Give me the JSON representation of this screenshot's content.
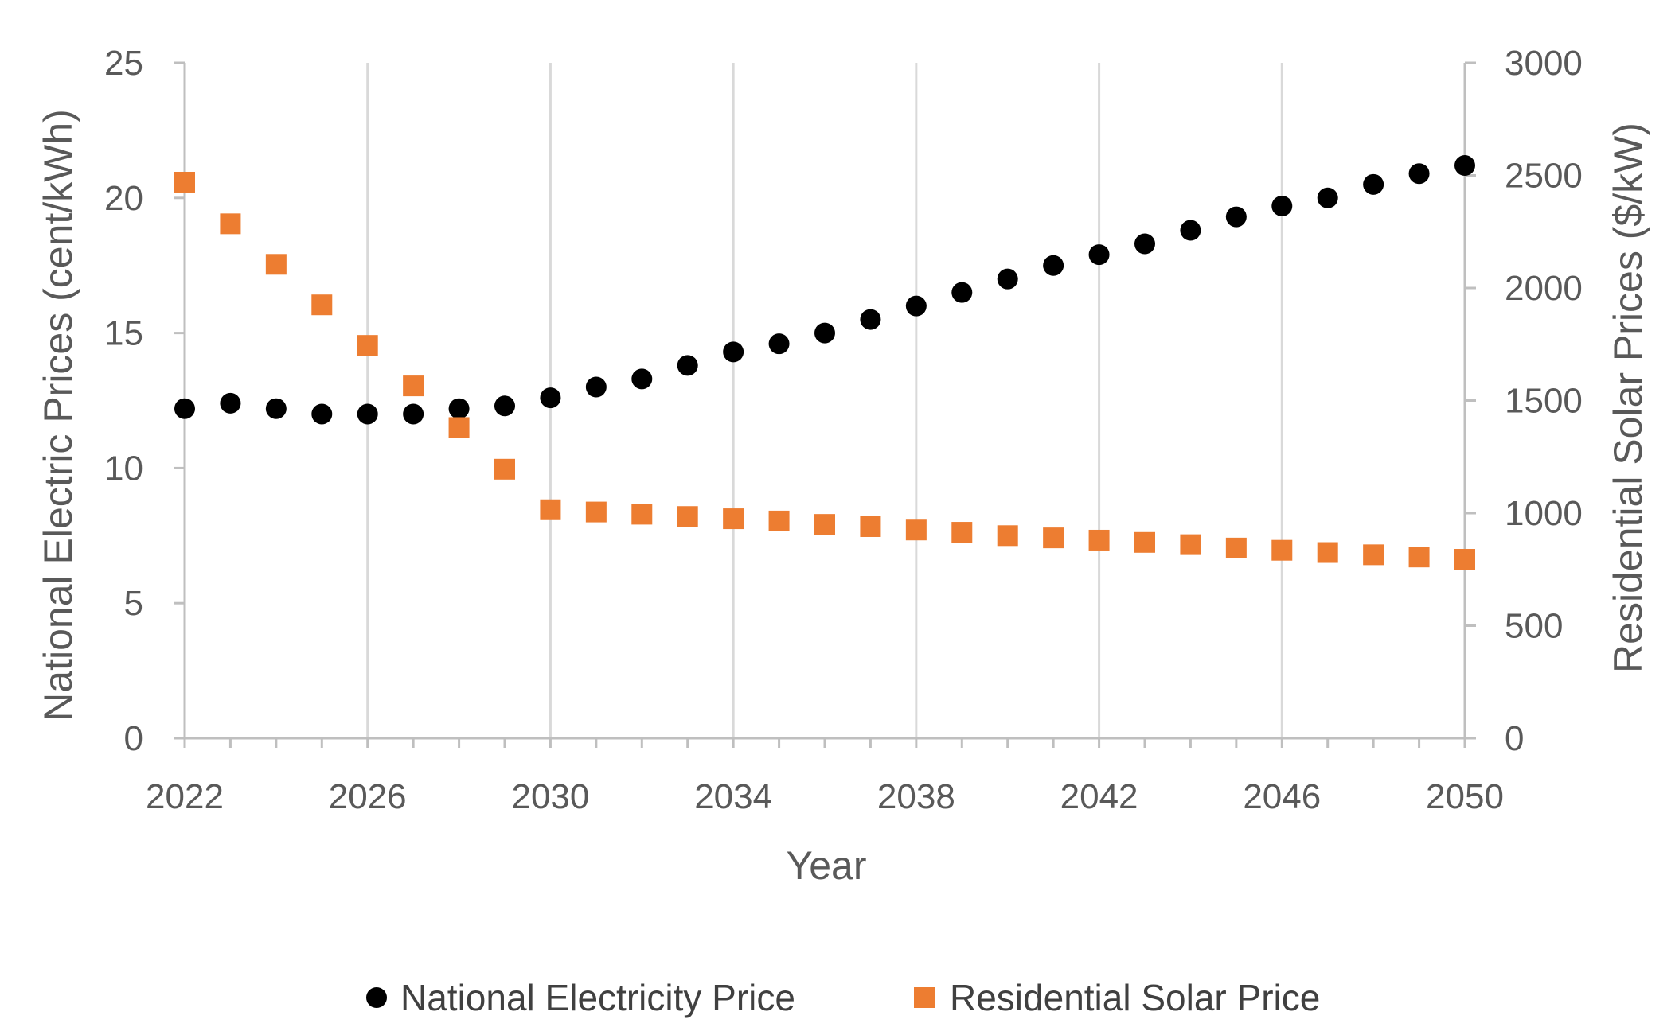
{
  "chart_data": {
    "type": "scatter",
    "title": "",
    "xlabel": "Year",
    "ylabel_left": "National Electric Prices (cent/kWh)",
    "ylabel_right": "Residential Solar Prices ($/kW)",
    "xlim": [
      2022,
      2050
    ],
    "ylim_left": [
      0,
      25
    ],
    "ylim_right": [
      0,
      3000
    ],
    "x_ticks": [
      2022,
      2026,
      2030,
      2034,
      2038,
      2042,
      2046,
      2050
    ],
    "y_left_ticks": [
      0,
      5,
      10,
      15,
      20,
      25
    ],
    "y_right_ticks": [
      0,
      500,
      1000,
      1500,
      2000,
      2500,
      3000
    ],
    "grid": "vertical",
    "legend_position": "bottom",
    "x": [
      2022,
      2023,
      2024,
      2025,
      2026,
      2027,
      2028,
      2029,
      2030,
      2031,
      2032,
      2033,
      2034,
      2035,
      2036,
      2037,
      2038,
      2039,
      2040,
      2041,
      2042,
      2043,
      2044,
      2045,
      2046,
      2047,
      2048,
      2049,
      2050
    ],
    "series": [
      {
        "name": "National Electricity Price",
        "axis": "left",
        "marker": "circle",
        "color": "#000000",
        "values": [
          12.2,
          12.4,
          12.2,
          12.0,
          12.0,
          12.0,
          12.2,
          12.3,
          12.6,
          13.0,
          13.3,
          13.8,
          14.3,
          14.6,
          15.0,
          15.5,
          16.0,
          16.5,
          17.0,
          17.5,
          17.9,
          18.3,
          18.8,
          19.3,
          19.7,
          20.0,
          20.5,
          20.9,
          21.2
        ]
      },
      {
        "name": "Residential Solar Price",
        "axis": "right",
        "marker": "square",
        "color": "#ED7D31",
        "values": [
          2470,
          2285,
          2105,
          1925,
          1745,
          1565,
          1380,
          1195,
          1015,
          1005,
          995,
          985,
          975,
          965,
          950,
          940,
          925,
          915,
          900,
          890,
          880,
          870,
          860,
          845,
          835,
          825,
          815,
          805,
          795
        ]
      }
    ]
  },
  "colors": {
    "grid": "#D9D9D9",
    "axis": "#BFBFBF",
    "text": "#595959"
  }
}
